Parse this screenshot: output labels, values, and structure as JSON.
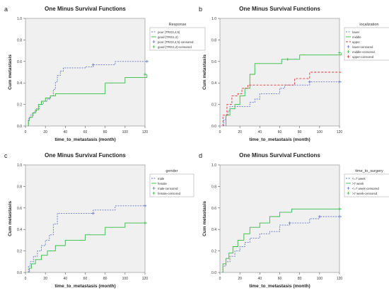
{
  "chart_data": [
    {
      "panel": "a",
      "type": "line",
      "title": "One Minus Survival Functions",
      "xlabel": "time_to_metastasis (month)",
      "ylabel": "Cum metastasis",
      "xlim": [
        0,
        120
      ],
      "ylim": [
        0,
        1.0
      ],
      "x_ticks": [
        "0",
        "20",
        "40",
        "60",
        "80",
        "100",
        "120"
      ],
      "y_ticks": [
        "0.0",
        "0.2",
        "0.4",
        "0.6",
        "0.8",
        "1.0"
      ],
      "grid": false,
      "legend_title": "Response",
      "legend_labels": [
        "poor (TRG3,4,5)",
        "good (TRG1,2)",
        "poor (TRG3,4,5)-censored",
        "good (TRG1,2)-censored"
      ],
      "series": [
        {
          "name": "poor (TRG3,4,5)",
          "color": "#6677c8",
          "dash": "2,1.5",
          "points": [
            [
              3,
              0
            ],
            [
              3,
              0.07
            ],
            [
              5,
              0.1
            ],
            [
              8,
              0.13
            ],
            [
              11,
              0.16
            ],
            [
              14,
              0.2
            ],
            [
              18,
              0.23
            ],
            [
              22,
              0.25
            ],
            [
              25,
              0.28
            ],
            [
              28,
              0.34
            ],
            [
              30,
              0.41
            ],
            [
              32,
              0.47
            ],
            [
              35,
              0.51
            ],
            [
              38,
              0.54
            ],
            [
              45,
              0.54
            ],
            [
              60,
              0.55
            ],
            [
              68,
              0.57
            ],
            [
              90,
              0.6
            ],
            [
              122,
              0.6
            ]
          ],
          "censored": [
            [
              68,
              0.57
            ],
            [
              122,
              0.6
            ]
          ]
        },
        {
          "name": "good (TRG1,2)",
          "color": "#33bb44",
          "dash": "",
          "points": [
            [
              3,
              0
            ],
            [
              3,
              0.05
            ],
            [
              4,
              0.08
            ],
            [
              7,
              0.12
            ],
            [
              10,
              0.15
            ],
            [
              13,
              0.2
            ],
            [
              16,
              0.23
            ],
            [
              20,
              0.26
            ],
            [
              25,
              0.28
            ],
            [
              30,
              0.3
            ],
            [
              40,
              0.3
            ],
            [
              80,
              0.4
            ],
            [
              100,
              0.45
            ],
            [
              122,
              0.48
            ]
          ],
          "censored": [
            [
              120,
              0.48
            ]
          ]
        }
      ]
    },
    {
      "panel": "b",
      "type": "line",
      "title": "One Minus Survival Functions",
      "xlabel": "time_to_metastasis (month)",
      "ylabel": "Cum metastasis",
      "xlim": [
        0,
        120
      ],
      "ylim": [
        0,
        1.0
      ],
      "x_ticks": [
        "0",
        "20",
        "40",
        "60",
        "80",
        "100",
        "120"
      ],
      "y_ticks": [
        "0.0",
        "0.2",
        "0.4",
        "0.6",
        "0.8",
        "1.0"
      ],
      "grid": false,
      "legend_title": "localization",
      "legend_labels": [
        "lower",
        "middle",
        "upper",
        "lower-censored",
        "middle-censored",
        "upper-censored"
      ],
      "series": [
        {
          "name": "lower",
          "color": "#6677c8",
          "dash": "2,1.5",
          "points": [
            [
              4,
              0
            ],
            [
              4,
              0.06
            ],
            [
              6,
              0.1
            ],
            [
              8,
              0.14
            ],
            [
              10,
              0.18
            ],
            [
              20,
              0.18
            ],
            [
              30,
              0.18
            ],
            [
              30,
              0.22
            ],
            [
              35,
              0.25
            ],
            [
              40,
              0.3
            ],
            [
              55,
              0.3
            ],
            [
              60,
              0.35
            ],
            [
              65,
              0.38
            ],
            [
              90,
              0.41
            ],
            [
              122,
              0.41
            ]
          ],
          "censored": [
            [
              90,
              0.41
            ],
            [
              120,
              0.41
            ]
          ]
        },
        {
          "name": "middle",
          "color": "#33bb44",
          "dash": "",
          "points": [
            [
              6,
              0
            ],
            [
              6,
              0.1
            ],
            [
              10,
              0.16
            ],
            [
              15,
              0.2
            ],
            [
              20,
              0.28
            ],
            [
              25,
              0.35
            ],
            [
              30,
              0.48
            ],
            [
              35,
              0.58
            ],
            [
              50,
              0.58
            ],
            [
              62,
              0.62
            ],
            [
              80,
              0.66
            ],
            [
              122,
              0.68
            ]
          ],
          "censored": [
            [
              68,
              0.62
            ],
            [
              120,
              0.68
            ]
          ]
        },
        {
          "name": "upper",
          "color": "#dd3333",
          "dash": "3,2",
          "points": [
            [
              3,
              0
            ],
            [
              3,
              0.1
            ],
            [
              7,
              0.2
            ],
            [
              12,
              0.28
            ],
            [
              18,
              0.3
            ],
            [
              22,
              0.35
            ],
            [
              28,
              0.38
            ],
            [
              60,
              0.38
            ],
            [
              75,
              0.44
            ],
            [
              90,
              0.5
            ],
            [
              122,
              0.5
            ]
          ],
          "censored": []
        }
      ]
    },
    {
      "panel": "c",
      "type": "line",
      "title": "One Minus Survival Functions",
      "xlabel": "time_to_metastasis (month)",
      "ylabel": "Cum metastasis",
      "xlim": [
        0,
        120
      ],
      "ylim": [
        0,
        1.0
      ],
      "x_ticks": [
        "0",
        "20",
        "40",
        "60",
        "80",
        "100",
        "120"
      ],
      "y_ticks": [
        "0.0",
        "0.2",
        "0.4",
        "0.6",
        "0.8",
        "1.0"
      ],
      "grid": false,
      "legend_title": "gender",
      "legend_labels": [
        "male",
        "female",
        "male-censored",
        "female-censored"
      ],
      "series": [
        {
          "name": "male",
          "color": "#6677c8",
          "dash": "2,1.5",
          "points": [
            [
              3,
              0
            ],
            [
              3,
              0.06
            ],
            [
              5,
              0.1
            ],
            [
              8,
              0.15
            ],
            [
              12,
              0.2
            ],
            [
              16,
              0.25
            ],
            [
              20,
              0.3
            ],
            [
              24,
              0.35
            ],
            [
              28,
              0.45
            ],
            [
              32,
              0.55
            ],
            [
              60,
              0.55
            ],
            [
              68,
              0.58
            ],
            [
              90,
              0.62
            ],
            [
              122,
              0.62
            ]
          ],
          "censored": [
            [
              68,
              0.55
            ],
            [
              120,
              0.62
            ]
          ]
        },
        {
          "name": "female",
          "color": "#33bb44",
          "dash": "",
          "points": [
            [
              4,
              0
            ],
            [
              4,
              0.04
            ],
            [
              6,
              0.08
            ],
            [
              10,
              0.12
            ],
            [
              16,
              0.16
            ],
            [
              22,
              0.2
            ],
            [
              30,
              0.25
            ],
            [
              40,
              0.3
            ],
            [
              60,
              0.35
            ],
            [
              80,
              0.42
            ],
            [
              100,
              0.46
            ],
            [
              122,
              0.46
            ]
          ],
          "censored": [
            [
              120,
              0.46
            ]
          ]
        }
      ]
    },
    {
      "panel": "d",
      "type": "line",
      "title": "One Minus Survival Functions",
      "xlabel": "time_to_metastasis (month)",
      "ylabel": "Cum metastasis",
      "xlim": [
        0,
        120
      ],
      "ylim": [
        0,
        1.0
      ],
      "x_ticks": [
        "0",
        "20",
        "40",
        "60",
        "80",
        "100",
        "120"
      ],
      "y_ticks": [
        "0.0",
        "0.2",
        "0.4",
        "0.6",
        "0.8",
        "1.0"
      ],
      "grid": false,
      "legend_title": "time_to_surgery",
      "legend_labels": [
        "<=7 week",
        ">7 week",
        "<=7 week-censored",
        ">7 week-censored"
      ],
      "series": [
        {
          "name": "<=7 week",
          "color": "#6677c8",
          "dash": "2,1.5",
          "points": [
            [
              3,
              0
            ],
            [
              3,
              0.06
            ],
            [
              6,
              0.1
            ],
            [
              10,
              0.15
            ],
            [
              15,
              0.2
            ],
            [
              20,
              0.24
            ],
            [
              25,
              0.28
            ],
            [
              30,
              0.32
            ],
            [
              40,
              0.36
            ],
            [
              50,
              0.38
            ],
            [
              60,
              0.44
            ],
            [
              70,
              0.46
            ],
            [
              90,
              0.5
            ],
            [
              100,
              0.52
            ],
            [
              122,
              0.52
            ]
          ],
          "censored": [
            [
              70,
              0.46
            ],
            [
              100,
              0.52
            ],
            [
              120,
              0.52
            ]
          ]
        },
        {
          "name": ">7 week",
          "color": "#33bb44",
          "dash": "",
          "points": [
            [
              3,
              0
            ],
            [
              3,
              0.08
            ],
            [
              6,
              0.13
            ],
            [
              9,
              0.18
            ],
            [
              13,
              0.24
            ],
            [
              18,
              0.3
            ],
            [
              24,
              0.36
            ],
            [
              30,
              0.42
            ],
            [
              40,
              0.46
            ],
            [
              50,
              0.52
            ],
            [
              60,
              0.56
            ],
            [
              72,
              0.59
            ],
            [
              122,
              0.59
            ]
          ],
          "censored": [
            [
              120,
              0.59
            ]
          ]
        }
      ]
    }
  ]
}
